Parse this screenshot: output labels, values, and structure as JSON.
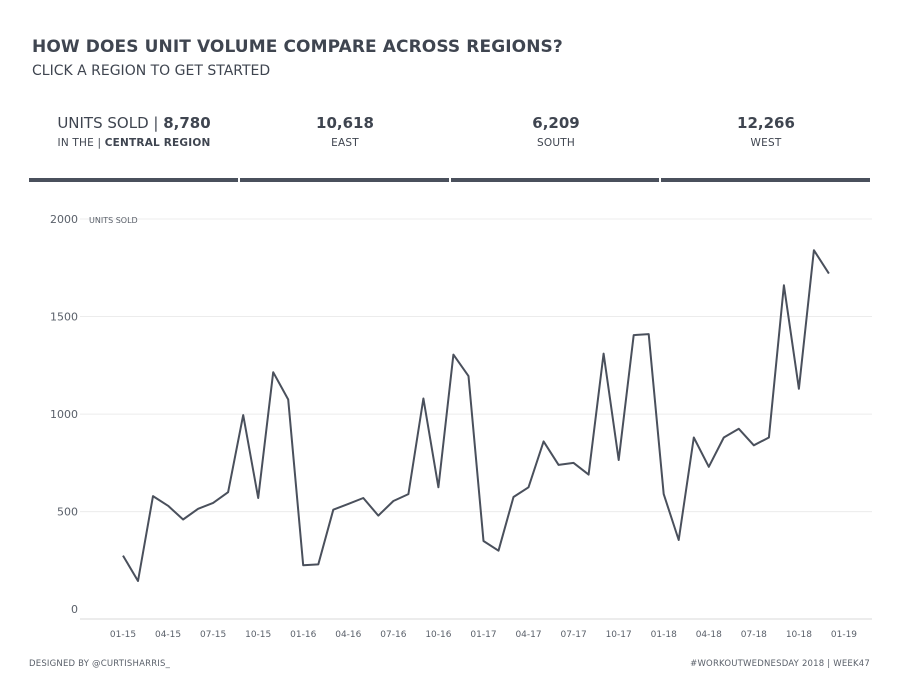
{
  "header": {
    "title": "HOW DOES UNIT VOLUME COMPARE ACROSS REGIONS?",
    "subtitle": "CLICK A REGION TO GET STARTED"
  },
  "kpis": {
    "central": {
      "prefix": "UNITS SOLD | ",
      "value": "8,780",
      "sub_prefix": "IN THE | ",
      "sub_label": "CENTRAL REGION"
    },
    "east": {
      "value": "10,618",
      "label": "EAST"
    },
    "south": {
      "value": "6,209",
      "label": "SOUTH"
    },
    "west": {
      "value": "12,266",
      "label": "WEST"
    }
  },
  "chart_data": {
    "type": "line",
    "title": "",
    "ylabel": "UNITS SOLD",
    "xlabel": "",
    "ylim": [
      -50,
      2000
    ],
    "yticks": [
      0,
      500,
      1000,
      1500,
      2000
    ],
    "x_tick_labels": [
      "01-15",
      "04-15",
      "07-15",
      "10-15",
      "01-16",
      "04-16",
      "07-16",
      "10-16",
      "01-17",
      "04-17",
      "07-17",
      "10-17",
      "01-18",
      "04-18",
      "07-18",
      "10-18",
      "01-19"
    ],
    "series": [
      {
        "name": "Units Sold",
        "values": [
          275,
          145,
          580,
          530,
          460,
          515,
          545,
          600,
          995,
          570,
          1215,
          1075,
          225,
          230,
          510,
          540,
          570,
          480,
          555,
          590,
          1080,
          625,
          1305,
          1195,
          350,
          300,
          575,
          625,
          860,
          740,
          750,
          690,
          1310,
          765,
          1405,
          1410,
          590,
          355,
          880,
          730,
          880,
          925,
          840,
          880,
          1660,
          1130,
          1840,
          1720
        ]
      }
    ]
  },
  "footer": {
    "left": "DESIGNED BY @CURTISHARRIS_",
    "right": "#WORKOUTWEDNESDAY 2018 | WEEK47"
  }
}
